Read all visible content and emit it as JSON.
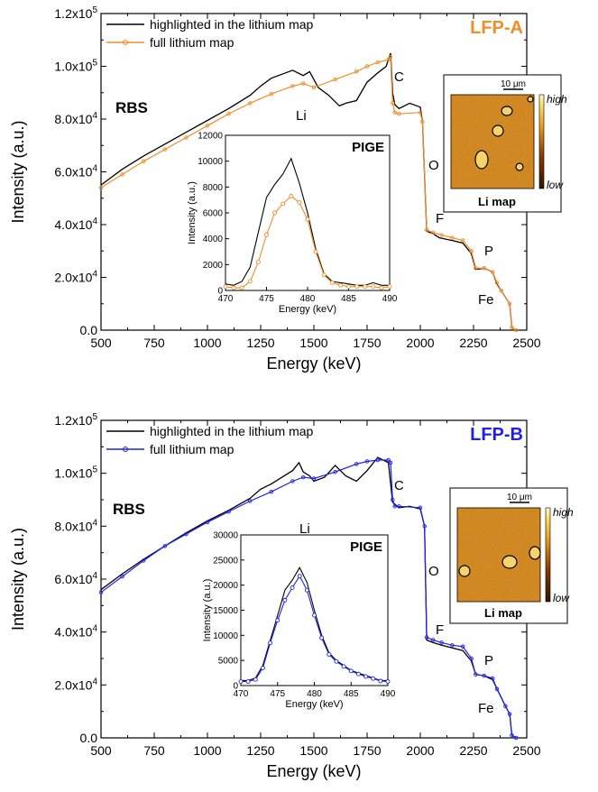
{
  "chart_data": [
    {
      "type": "line",
      "panel_label": "LFP-A",
      "accent": "#F28C28",
      "xlabel": "Energy (keV)",
      "ylabel": "Intensity (a.u.)",
      "xlim": [
        500,
        2500
      ],
      "ylim": [
        0,
        120000
      ],
      "x_ticks": [
        "500",
        "750",
        "1000",
        "1250",
        "1500",
        "1750",
        "2000",
        "2250",
        "2500"
      ],
      "y_ticks": [
        "0.0",
        "2.0x10^4",
        "4.0x10^4",
        "6.0x10^4",
        "8.0x10^4",
        "1.0x10^5",
        "1.2x10^5"
      ],
      "annotations": {
        "rbs": "RBS",
        "li": "Li",
        "c": "C",
        "o": "O",
        "f": "F",
        "p": "P",
        "fe": "Fe"
      },
      "series": [
        {
          "name": "highlighted in the lithium map",
          "color": "#000000",
          "x": [
            500,
            600,
            700,
            800,
            900,
            1000,
            1100,
            1200,
            1250,
            1300,
            1350,
            1400,
            1450,
            1480,
            1520,
            1570,
            1620,
            1650,
            1700,
            1750,
            1800,
            1840,
            1860,
            1870,
            1880,
            1900,
            1950,
            2000,
            2010,
            2030,
            2060,
            2090,
            2150,
            2200,
            2240,
            2260,
            2300,
            2340,
            2360,
            2380,
            2420,
            2430,
            2450
          ],
          "y": [
            55000,
            61000,
            66000,
            70500,
            75000,
            79500,
            84000,
            89000,
            92500,
            95500,
            97000,
            98500,
            96500,
            98000,
            92000,
            89000,
            85000,
            86000,
            87000,
            94000,
            97500,
            100000,
            105000,
            90000,
            85500,
            84000,
            86000,
            84500,
            79000,
            37500,
            36500,
            35000,
            34000,
            33000,
            29000,
            23000,
            23500,
            22000,
            17500,
            15000,
            10000,
            1000,
            0
          ]
        },
        {
          "name": "full lithium map",
          "color": "#F28C28",
          "x": [
            500,
            600,
            700,
            800,
            900,
            1000,
            1100,
            1200,
            1300,
            1400,
            1450,
            1500,
            1600,
            1700,
            1750,
            1800,
            1850,
            1860,
            1870,
            1880,
            1900,
            2000,
            2010,
            2030,
            2060,
            2100,
            2150,
            2200,
            2240,
            2260,
            2300,
            2340,
            2360,
            2380,
            2420,
            2430,
            2450
          ],
          "y": [
            54000,
            59000,
            64000,
            68500,
            73000,
            77500,
            82000,
            86000,
            89500,
            92500,
            93500,
            92000,
            95000,
            98000,
            100000,
            101500,
            102500,
            103500,
            86000,
            82500,
            82000,
            82500,
            79000,
            38000,
            37000,
            36000,
            35000,
            34000,
            30000,
            23500,
            23500,
            22000,
            18000,
            15000,
            10000,
            1000,
            0
          ]
        }
      ],
      "inset": {
        "title": "PIGE",
        "xlabel": "Energy (keV)",
        "ylabel": "Intensity (a.u.)",
        "xlim": [
          470,
          490
        ],
        "ylim": [
          0,
          12000
        ],
        "x_ticks": [
          "470",
          "475",
          "480",
          "485",
          "490"
        ],
        "y_ticks": [
          "0",
          "2000",
          "4000",
          "6000",
          "8000",
          "10000",
          "12000"
        ],
        "series": [
          {
            "name": "highlighted in the lithium map",
            "color": "#000000",
            "x": [
              470,
              471,
              472,
              473,
              474,
              475,
              476,
              477,
              478,
              479,
              480,
              481,
              482,
              483,
              484,
              485,
              486,
              487,
              488,
              489,
              490
            ],
            "y": [
              500,
              400,
              700,
              1800,
              4500,
              7200,
              8200,
              9000,
              10200,
              8300,
              6000,
              3200,
              1300,
              700,
              600,
              500,
              400,
              400,
              600,
              400,
              400
            ]
          },
          {
            "name": "full lithium map",
            "color": "#F28C28",
            "x": [
              470,
              471,
              472,
              473,
              474,
              475,
              476,
              477,
              478,
              479,
              480,
              481,
              482,
              483,
              484,
              485,
              486,
              487,
              488,
              489,
              490
            ],
            "y": [
              300,
              200,
              200,
              700,
              2200,
              4300,
              6000,
              6700,
              7300,
              6800,
              5500,
              3000,
              1200,
              600,
              400,
              300,
              300,
              300,
              300,
              200,
              300
            ]
          }
        ]
      },
      "map": {
        "scale_bar": "10 μm",
        "high_label": "high",
        "low_label": "low",
        "caption": "Li map"
      }
    },
    {
      "type": "line",
      "panel_label": "LFP-B",
      "accent": "#1F22E6",
      "xlabel": "Energy (keV)",
      "ylabel": "Intensity (a.u.)",
      "xlim": [
        500,
        2500
      ],
      "ylim": [
        0,
        120000
      ],
      "x_ticks": [
        "500",
        "750",
        "1000",
        "1250",
        "1500",
        "1750",
        "2000",
        "2250",
        "2500"
      ],
      "y_ticks": [
        "0.0",
        "2.0x10^4",
        "4.0x10^4",
        "6.0x10^4",
        "8.0x10^4",
        "1.0x10^5",
        "1.2x10^5"
      ],
      "annotations": {
        "rbs": "RBS",
        "li": "Li",
        "c": "C",
        "o": "O",
        "f": "F",
        "p": "P",
        "fe": "Fe"
      },
      "series": [
        {
          "name": "highlighted in the lithium map",
          "color": "#000000",
          "x": [
            500,
            600,
            700,
            800,
            900,
            1000,
            1100,
            1200,
            1250,
            1300,
            1350,
            1400,
            1430,
            1450,
            1480,
            1500,
            1550,
            1600,
            1650,
            1700,
            1750,
            1800,
            1850,
            1870,
            1900,
            1950,
            2000,
            2020,
            2030,
            2060,
            2100,
            2150,
            2200,
            2240,
            2260,
            2300,
            2340,
            2360,
            2400,
            2420,
            2430,
            2450
          ],
          "y": [
            56000,
            62000,
            67500,
            72500,
            77500,
            82000,
            86000,
            90500,
            94000,
            96000,
            98500,
            101000,
            104000,
            100500,
            99000,
            97000,
            98500,
            103000,
            99000,
            97000,
            101000,
            106000,
            104000,
            89000,
            87000,
            87500,
            86500,
            80000,
            37000,
            36000,
            35000,
            34000,
            33000,
            29000,
            24000,
            23500,
            22000,
            18500,
            12000,
            9000,
            1000,
            0
          ]
        },
        {
          "name": "full lithium map",
          "color": "#1F22E6",
          "x": [
            500,
            600,
            700,
            800,
            900,
            1000,
            1100,
            1200,
            1300,
            1400,
            1450,
            1500,
            1600,
            1700,
            1750,
            1800,
            1850,
            1860,
            1870,
            1880,
            1900,
            2000,
            2020,
            2030,
            2060,
            2100,
            2150,
            2200,
            2240,
            2260,
            2300,
            2340,
            2360,
            2400,
            2420,
            2430,
            2450
          ],
          "y": [
            55000,
            61000,
            67000,
            72500,
            77000,
            81500,
            85500,
            89500,
            93000,
            97000,
            98500,
            98000,
            100500,
            103500,
            104500,
            105000,
            105000,
            104000,
            90000,
            87500,
            87500,
            87000,
            80000,
            38000,
            37000,
            36000,
            35000,
            34500,
            30000,
            24000,
            23500,
            22500,
            18500,
            12000,
            9000,
            1000,
            0
          ]
        }
      ],
      "inset": {
        "title": "PIGE",
        "xlabel": "Energy (keV)",
        "ylabel": "Intensity (a.u.)",
        "xlim": [
          470,
          490
        ],
        "ylim": [
          0,
          30000
        ],
        "x_ticks": [
          "470",
          "475",
          "480",
          "485",
          "490"
        ],
        "y_ticks": [
          "0",
          "5000",
          "10000",
          "15000",
          "20000",
          "25000",
          "30000"
        ],
        "series": [
          {
            "name": "highlighted in the lithium map",
            "color": "#000000",
            "x": [
              470,
              471,
              472,
              473,
              474,
              475,
              476,
              477,
              478,
              479,
              480,
              481,
              482,
              483,
              484,
              485,
              486,
              487,
              488,
              489,
              490
            ],
            "y": [
              1000,
              1000,
              1500,
              4000,
              9000,
              14000,
              19000,
              21000,
              23500,
              20500,
              15000,
              10000,
              6500,
              5000,
              4000,
              3000,
              2500,
              2000,
              1500,
              1000,
              1000
            ]
          },
          {
            "name": "full lithium map",
            "color": "#1F22E6",
            "x": [
              470,
              471,
              472,
              473,
              474,
              475,
              476,
              477,
              478,
              479,
              480,
              481,
              482,
              483,
              484,
              485,
              486,
              487,
              488,
              489,
              490
            ],
            "y": [
              800,
              800,
              1200,
              3500,
              8500,
              13000,
              17000,
              19500,
              21800,
              19000,
              14000,
              9500,
              6200,
              4800,
              3800,
              2900,
              2300,
              1800,
              1400,
              900,
              800
            ]
          }
        ]
      },
      "map": {
        "scale_bar": "10 μm",
        "high_label": "high",
        "low_label": "low",
        "caption": "Li map"
      }
    }
  ]
}
